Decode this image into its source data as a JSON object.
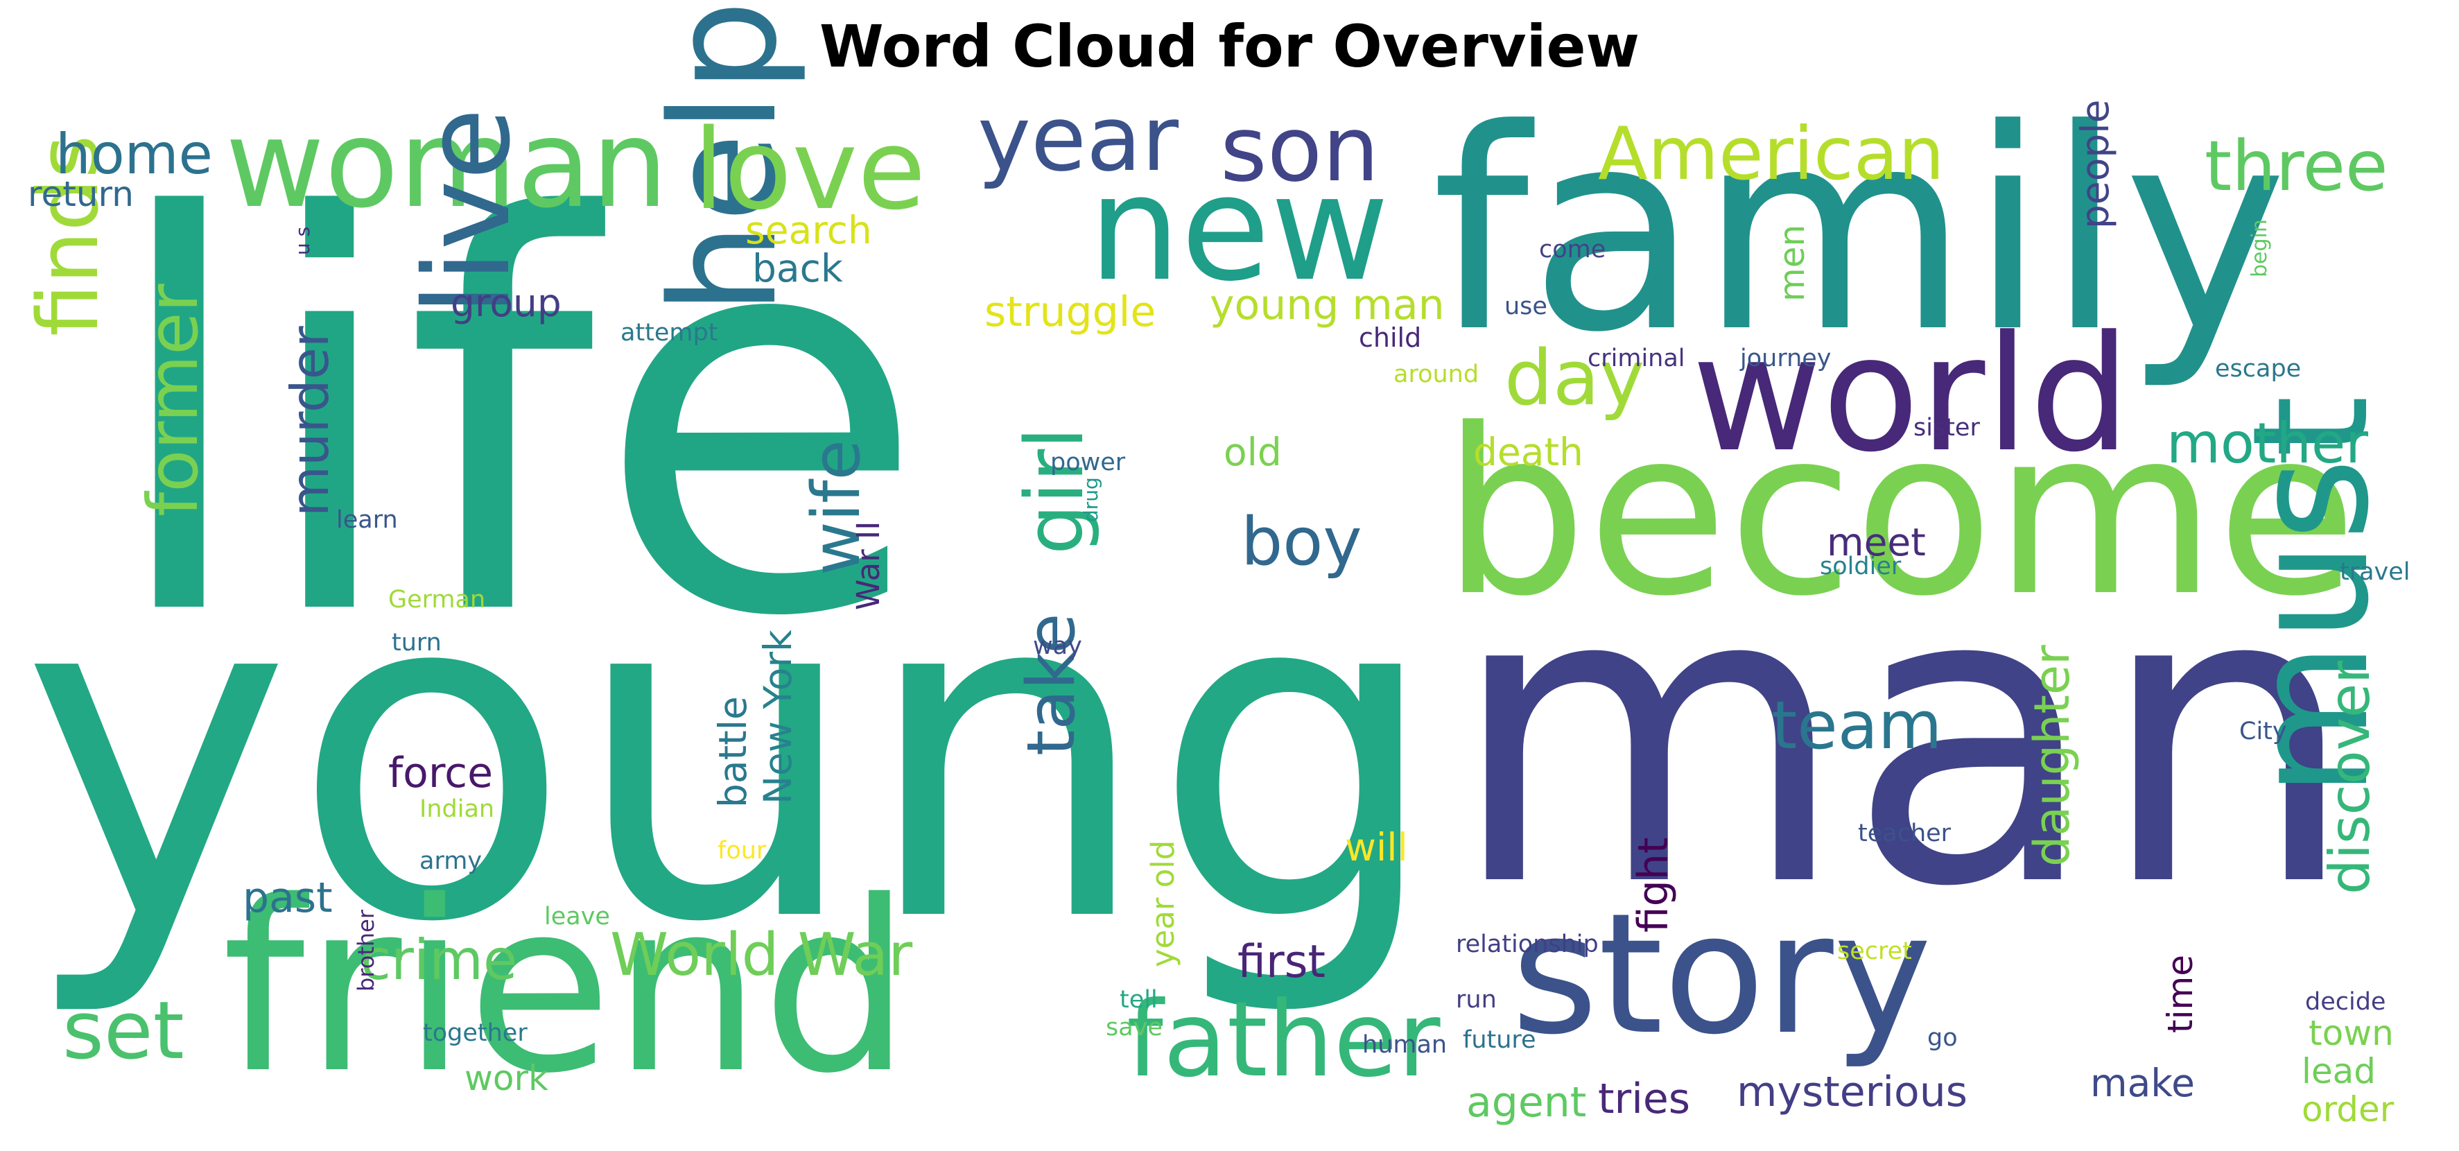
{
  "chart_data": {
    "type": "wordcloud",
    "title": "Word Cloud for Overview",
    "words": [
      {
        "text": "life",
        "weight": 1.0,
        "color": "#21a685"
      },
      {
        "text": "young",
        "weight": 0.96,
        "color": "#22a884"
      },
      {
        "text": "man",
        "weight": 0.9,
        "color": "#404387"
      },
      {
        "text": "family",
        "weight": 0.62,
        "color": "#21918c"
      },
      {
        "text": "become",
        "weight": 0.6,
        "color": "#7ad151"
      },
      {
        "text": "friend",
        "weight": 0.55,
        "color": "#3dbc74"
      },
      {
        "text": "story",
        "weight": 0.47,
        "color": "#3b528b"
      },
      {
        "text": "world",
        "weight": 0.43,
        "color": "#482878"
      },
      {
        "text": "woman",
        "weight": 0.36,
        "color": "#5ec962"
      },
      {
        "text": "new",
        "weight": 0.35,
        "color": "#1f9e89"
      },
      {
        "text": "help",
        "weight": 0.34,
        "color": "#2c728e"
      },
      {
        "text": "must",
        "weight": 0.33,
        "color": "#1f988b"
      },
      {
        "text": "love",
        "weight": 0.3,
        "color": "#7ad151"
      },
      {
        "text": "live",
        "weight": 0.28,
        "color": "#31688e"
      },
      {
        "text": "father",
        "weight": 0.28,
        "color": "#35b779"
      },
      {
        "text": "son",
        "weight": 0.23,
        "color": "#414487"
      },
      {
        "text": "year",
        "weight": 0.22,
        "color": "#3b528b"
      },
      {
        "text": "American",
        "weight": 0.2,
        "color": "#b5de2b"
      },
      {
        "text": "finds",
        "weight": 0.2,
        "color": "#a0da39"
      },
      {
        "text": "set",
        "weight": 0.2,
        "color": "#4ac16d"
      },
      {
        "text": "three",
        "weight": 0.18,
        "color": "#5ec962"
      },
      {
        "text": "girl",
        "weight": 0.18,
        "color": "#29af7f"
      },
      {
        "text": "former",
        "weight": 0.17,
        "color": "#7ad151"
      },
      {
        "text": "wife",
        "weight": 0.17,
        "color": "#2a788e"
      },
      {
        "text": "day",
        "weight": 0.16,
        "color": "#a0da39"
      },
      {
        "text": "take",
        "weight": 0.16,
        "color": "#31688e"
      },
      {
        "text": "team",
        "weight": 0.16,
        "color": "#2a768e"
      },
      {
        "text": "discover",
        "weight": 0.15,
        "color": "#35b779"
      },
      {
        "text": "home",
        "weight": 0.14,
        "color": "#2c728e"
      },
      {
        "text": "mother",
        "weight": 0.14,
        "color": "#22a884"
      },
      {
        "text": "boy",
        "weight": 0.14,
        "color": "#31688e"
      },
      {
        "text": "World War",
        "weight": 0.14,
        "color": "#6ece58"
      },
      {
        "text": "crime",
        "weight": 0.13,
        "color": "#5ec962"
      },
      {
        "text": "murder",
        "weight": 0.13,
        "color": "#39568c"
      },
      {
        "text": "daughter",
        "weight": 0.13,
        "color": "#7ad151"
      },
      {
        "text": "mysterious",
        "weight": 0.1,
        "color": "#433e85"
      },
      {
        "text": "first",
        "weight": 0.1,
        "color": "#482576"
      },
      {
        "text": "fight",
        "weight": 0.09,
        "color": "#440154"
      },
      {
        "text": "battle",
        "weight": 0.09,
        "color": "#2a788e"
      },
      {
        "text": "New York",
        "weight": 0.09,
        "color": "#26828e"
      },
      {
        "text": "force",
        "weight": 0.09,
        "color": "#48186a"
      },
      {
        "text": "past",
        "weight": 0.09,
        "color": "#2c728e"
      },
      {
        "text": "struggle",
        "weight": 0.09,
        "color": "#e3e418"
      },
      {
        "text": "young man",
        "weight": 0.09,
        "color": "#b5de2b"
      },
      {
        "text": "people",
        "weight": 0.08,
        "color": "#414487"
      },
      {
        "text": "agent",
        "weight": 0.08,
        "color": "#5ec962"
      },
      {
        "text": "tries",
        "weight": 0.08,
        "color": "#482878"
      },
      {
        "text": "group",
        "weight": 0.08,
        "color": "#433e85"
      },
      {
        "text": "search",
        "weight": 0.08,
        "color": "#d8e219"
      },
      {
        "text": "back",
        "weight": 0.08,
        "color": "#2a788e"
      },
      {
        "text": "return",
        "weight": 0.08,
        "color": "#31688e"
      },
      {
        "text": "meet",
        "weight": 0.08,
        "color": "#472d7b"
      },
      {
        "text": "death",
        "weight": 0.08,
        "color": "#b5de2b"
      },
      {
        "text": "old",
        "weight": 0.08,
        "color": "#7ad151"
      },
      {
        "text": "men",
        "weight": 0.08,
        "color": "#6ece58"
      },
      {
        "text": "will",
        "weight": 0.08,
        "color": "#fde725"
      },
      {
        "text": "work",
        "weight": 0.08,
        "color": "#5ec962"
      },
      {
        "text": "make",
        "weight": 0.08,
        "color": "#3e4a89"
      },
      {
        "text": "town",
        "weight": 0.08,
        "color": "#7ad151"
      },
      {
        "text": "lead",
        "weight": 0.08,
        "color": "#6ece58"
      },
      {
        "text": "order",
        "weight": 0.08,
        "color": "#a0da39"
      },
      {
        "text": "time",
        "weight": 0.08,
        "color": "#440154"
      },
      {
        "text": "year old",
        "weight": 0.08,
        "color": "#a0da39"
      },
      {
        "text": "War II",
        "weight": 0.07,
        "color": "#482878"
      },
      {
        "text": "child",
        "weight": 0.05,
        "color": "#482878"
      },
      {
        "text": "criminal",
        "weight": 0.05,
        "color": "#46337e"
      },
      {
        "text": "journey",
        "weight": 0.05,
        "color": "#39568c"
      },
      {
        "text": "attempt",
        "weight": 0.05,
        "color": "#2a788e"
      },
      {
        "text": "come",
        "weight": 0.05,
        "color": "#414487"
      },
      {
        "text": "use",
        "weight": 0.05,
        "color": "#3b528b"
      },
      {
        "text": "around",
        "weight": 0.05,
        "color": "#b5de2b"
      },
      {
        "text": "escape",
        "weight": 0.05,
        "color": "#2a788e"
      },
      {
        "text": "sister",
        "weight": 0.05,
        "color": "#472d7b"
      },
      {
        "text": "power",
        "weight": 0.05,
        "color": "#31688e"
      },
      {
        "text": "learn",
        "weight": 0.05,
        "color": "#39568c"
      },
      {
        "text": "German",
        "weight": 0.05,
        "color": "#a0da39"
      },
      {
        "text": "turn",
        "weight": 0.05,
        "color": "#2c728e"
      },
      {
        "text": "way",
        "weight": 0.05,
        "color": "#3e4a89"
      },
      {
        "text": "soldier",
        "weight": 0.05,
        "color": "#26828e"
      },
      {
        "text": "travel",
        "weight": 0.05,
        "color": "#2a788e"
      },
      {
        "text": "City",
        "weight": 0.05,
        "color": "#39568c"
      },
      {
        "text": "teacher",
        "weight": 0.05,
        "color": "#3b528b"
      },
      {
        "text": "Indian",
        "weight": 0.05,
        "color": "#a0da39"
      },
      {
        "text": "army",
        "weight": 0.05,
        "color": "#2c728e"
      },
      {
        "text": "four",
        "weight": 0.05,
        "color": "#fde725"
      },
      {
        "text": "leave",
        "weight": 0.05,
        "color": "#5ec962"
      },
      {
        "text": "relationship",
        "weight": 0.05,
        "color": "#433e85"
      },
      {
        "text": "secret",
        "weight": 0.05,
        "color": "#c2df23"
      },
      {
        "text": "tell",
        "weight": 0.05,
        "color": "#22a884"
      },
      {
        "text": "save",
        "weight": 0.05,
        "color": "#5ec962"
      },
      {
        "text": "run",
        "weight": 0.05,
        "color": "#433e85"
      },
      {
        "text": "together",
        "weight": 0.05,
        "color": "#2a788e"
      },
      {
        "text": "human",
        "weight": 0.05,
        "color": "#3b528b"
      },
      {
        "text": "future",
        "weight": 0.05,
        "color": "#2c728e"
      },
      {
        "text": "go",
        "weight": 0.05,
        "color": "#39568c"
      },
      {
        "text": "decide",
        "weight": 0.05,
        "color": "#433e85"
      },
      {
        "text": "brother",
        "weight": 0.05,
        "color": "#482878"
      },
      {
        "text": "u s",
        "weight": 0.05,
        "color": "#472d7b"
      },
      {
        "text": "drug",
        "weight": 0.05,
        "color": "#1f988b"
      },
      {
        "text": "begin",
        "weight": 0.05,
        "color": "#5ec962"
      }
    ]
  }
}
